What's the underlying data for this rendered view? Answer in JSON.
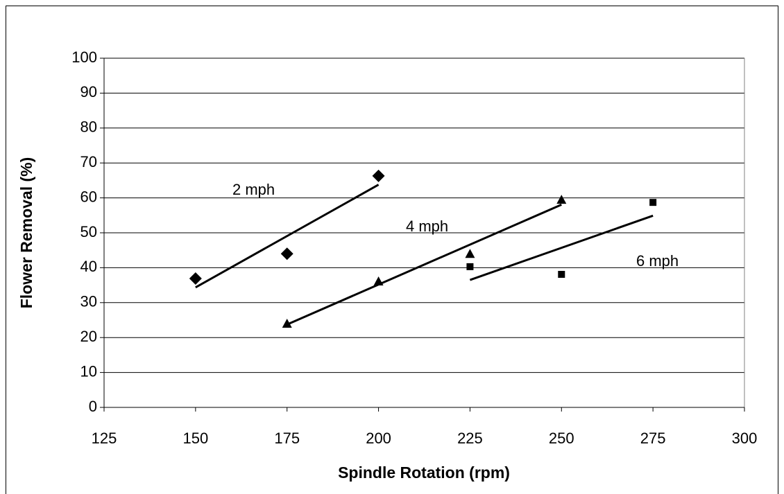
{
  "chart_data": {
    "type": "scatter",
    "x_label": "Spindle Rotation (rpm)",
    "y_label": "Flower Removal (%)",
    "xlim": [
      125,
      300
    ],
    "xticks": [
      125,
      150,
      175,
      200,
      225,
      250,
      275,
      300
    ],
    "ylim": [
      0,
      100
    ],
    "yticks": [
      0,
      10,
      20,
      30,
      40,
      50,
      60,
      70,
      80,
      90,
      100
    ],
    "grid": true,
    "trendline": true,
    "series": [
      {
        "name": "2 mph",
        "color": "#000000",
        "marker": "diamond",
        "x": [
          150,
          175,
          200
        ],
        "values": [
          36.9,
          44,
          66.3
        ]
      },
      {
        "name": "4 mph",
        "color": "#000000",
        "marker": "triangle",
        "x": [
          175,
          200,
          225,
          250
        ],
        "values": [
          24,
          36.1,
          44,
          59.5
        ]
      },
      {
        "name": "6 mph",
        "color": "#000000",
        "marker": "square",
        "x": [
          225,
          250,
          275
        ],
        "values": [
          40.3,
          38.1,
          58.7
        ]
      }
    ]
  }
}
